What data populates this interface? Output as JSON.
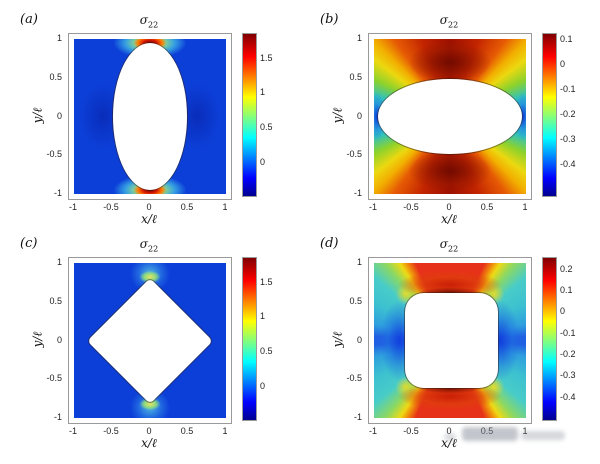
{
  "chart_data": {
    "type": "heatmap",
    "colormap": "jet",
    "layout": "2x2 grid of pcolor plots of stress component around holes under tension",
    "panels": [
      {
        "label": "(a)",
        "title": "σ",
        "title_sub": "22",
        "xlabel": "x/ℓ",
        "ylabel": "y/ℓ",
        "xlim": [
          -1,
          1
        ],
        "ylim": [
          -1,
          1
        ],
        "xticks": [
          -1,
          -0.5,
          0,
          0.5,
          1
        ],
        "yticks": [
          1,
          0.5,
          0,
          -0.5,
          -1
        ],
        "hole_shape": "vertical-ellipse",
        "hole_extent": {
          "x": [
            -0.5,
            0.5
          ],
          "y": [
            -0.95,
            0.95
          ]
        },
        "colorbar": {
          "min": -0.46,
          "max": 1.84,
          "ticks": [
            1.5,
            1,
            0.5,
            0
          ]
        },
        "field_description": "uniform blue far field near 0 with strong red stress concentrations (~1.8) at top and bottom ellipse tips"
      },
      {
        "label": "(b)",
        "title": "σ",
        "title_sub": "22",
        "xlabel": "x/ℓ",
        "ylabel": "y/ℓ",
        "xlim": [
          -1,
          1
        ],
        "ylim": [
          -1,
          1
        ],
        "xticks": [
          -1,
          -0.5,
          0,
          0.5,
          1
        ],
        "yticks": [
          1,
          0.5,
          0,
          -0.5,
          -1
        ],
        "hole_shape": "horizontal-ellipse",
        "hole_extent": {
          "x": [
            -0.95,
            0.95
          ],
          "y": [
            -0.5,
            0.5
          ]
        },
        "colorbar": {
          "min": -0.52,
          "max": 0.12,
          "ticks": [
            0.1,
            0,
            -0.1,
            -0.2,
            -0.3,
            -0.4
          ]
        },
        "field_description": "dark red above and below hole (~0.1), yellow corners, green to blue compressive spots (~-0.5) at left and right ellipse tips"
      },
      {
        "label": "(c)",
        "title": "σ",
        "title_sub": "22",
        "xlabel": "x/ℓ",
        "ylabel": "y/ℓ",
        "xlim": [
          -1,
          1
        ],
        "ylim": [
          -1,
          1
        ],
        "xticks": [
          -1,
          -0.5,
          0,
          0.5,
          1
        ],
        "yticks": [
          1,
          0.5,
          0,
          -0.5,
          -1
        ],
        "hole_shape": "diamond",
        "hole_extent": {
          "x": [
            -0.85,
            0.85
          ],
          "y": [
            -0.85,
            0.85
          ]
        },
        "colorbar": {
          "min": -0.46,
          "max": 1.84,
          "ticks": [
            1.5,
            1,
            0.5,
            0
          ]
        },
        "field_description": "uniform blue field with moderate yellow-green concentrations (~1) at top and bottom diamond vertices"
      },
      {
        "label": "(d)",
        "title": "σ",
        "title_sub": "22",
        "xlabel": "x/ℓ",
        "ylabel": "y/ℓ",
        "xlim": [
          -1,
          1
        ],
        "ylim": [
          -1,
          1
        ],
        "xticks": [
          -1,
          -0.5,
          0,
          0.5,
          1
        ],
        "yticks": [
          1,
          0.5,
          0,
          -0.5,
          -1
        ],
        "hole_shape": "rounded-square",
        "hole_extent": {
          "x": [
            -0.62,
            0.62
          ],
          "y": [
            -0.62,
            0.62
          ]
        },
        "colorbar": {
          "min": -0.5,
          "max": 0.25,
          "ticks": [
            0.2,
            0.1,
            0,
            -0.1,
            -0.2,
            -0.3,
            -0.4
          ]
        },
        "field_description": "red lobes (~0.15) above and below hole, deep blue lobes (~-0.45) left and right, yellow rays from the rounded corners, cyan outer corners"
      }
    ]
  },
  "watermark": {
    "present": true,
    "legible": false
  }
}
